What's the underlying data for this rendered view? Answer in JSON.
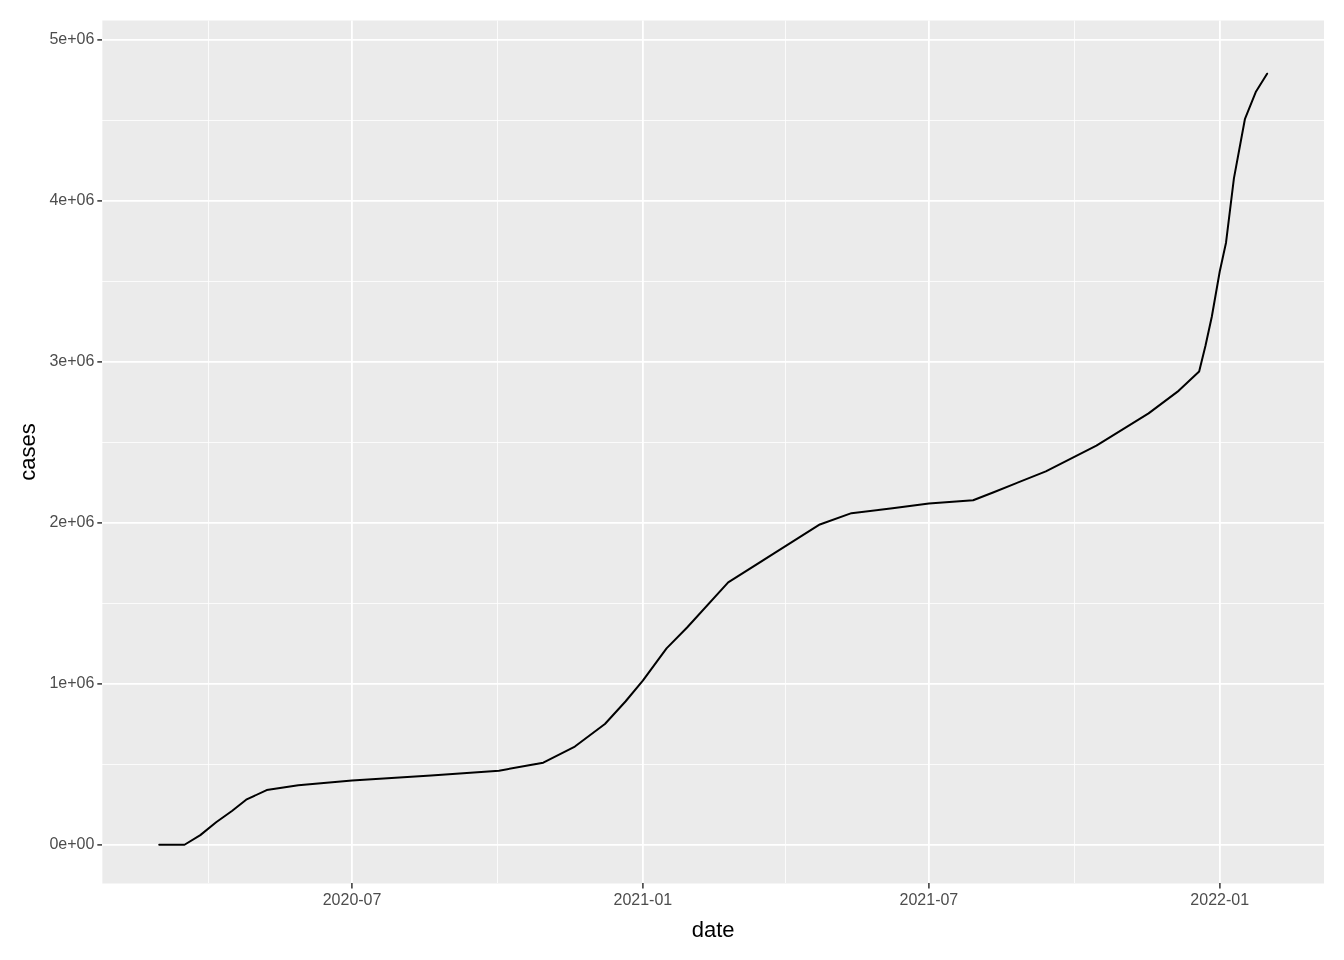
{
  "chart_data": {
    "type": "line",
    "xlabel": "date",
    "ylabel": "cases",
    "x": [
      "2020-03-01",
      "2020-03-17",
      "2020-03-27",
      "2020-04-06",
      "2020-04-16",
      "2020-04-25",
      "2020-05-08",
      "2020-05-28",
      "2020-07-01",
      "2020-08-20",
      "2020-10-02",
      "2020-10-30",
      "2020-11-19",
      "2020-12-08",
      "2020-12-21",
      "2021-01-01",
      "2021-01-16",
      "2021-01-29",
      "2021-02-24",
      "2021-03-25",
      "2021-04-10",
      "2021-04-23",
      "2021-05-13",
      "2021-06-08",
      "2021-07-01",
      "2021-07-29",
      "2021-08-11",
      "2021-09-13",
      "2021-10-15",
      "2021-11-17",
      "2021-12-06",
      "2021-12-19",
      "2021-12-23",
      "2021-12-27",
      "2022-01-01",
      "2022-01-05",
      "2022-01-10",
      "2022-01-17",
      "2022-01-24",
      "2022-01-31"
    ],
    "series": [
      {
        "color": "#000000",
        "values": [
          0,
          0,
          60000,
          140000,
          210000,
          280000,
          340000,
          370000,
          400000,
          430000,
          460000,
          510000,
          610000,
          750000,
          890000,
          1020000,
          1220000,
          1350000,
          1630000,
          1810000,
          1910000,
          1990000,
          2060000,
          2090000,
          2120000,
          2140000,
          2190000,
          2320000,
          2480000,
          2680000,
          2820000,
          2940000,
          3100000,
          3280000,
          3560000,
          3740000,
          4140000,
          4510000,
          4680000,
          4790000
        ]
      }
    ],
    "xlim": [
      "2020-01-25",
      "2022-03-08"
    ],
    "xticks": [
      {
        "value": "2020-04-01",
        "label": null
      },
      {
        "value": "2020-07-01",
        "label": "2020-07"
      },
      {
        "value": "2020-10-01",
        "label": null
      },
      {
        "value": "2021-01-01",
        "label": "2021-01"
      },
      {
        "value": "2021-04-01",
        "label": null
      },
      {
        "value": "2021-07-01",
        "label": "2021-07"
      },
      {
        "value": "2021-10-01",
        "label": null
      },
      {
        "value": "2022-01-01",
        "label": "2022-01"
      }
    ],
    "ylim": [
      -240000,
      5120000
    ],
    "yticks": [
      {
        "value": 0,
        "label": "0e+00"
      },
      {
        "value": 500000,
        "label": null
      },
      {
        "value": 1000000,
        "label": "1e+06"
      },
      {
        "value": 1500000,
        "label": null
      },
      {
        "value": 2000000,
        "label": "2e+06"
      },
      {
        "value": 2500000,
        "label": null
      },
      {
        "value": 3000000,
        "label": "3e+06"
      },
      {
        "value": 3500000,
        "label": null
      },
      {
        "value": 4000000,
        "label": "4e+06"
      },
      {
        "value": 4500000,
        "label": null
      },
      {
        "value": 5000000,
        "label": "5e+06"
      }
    ],
    "grid": true,
    "legend": false,
    "marker": "none",
    "line_style": "solid"
  }
}
